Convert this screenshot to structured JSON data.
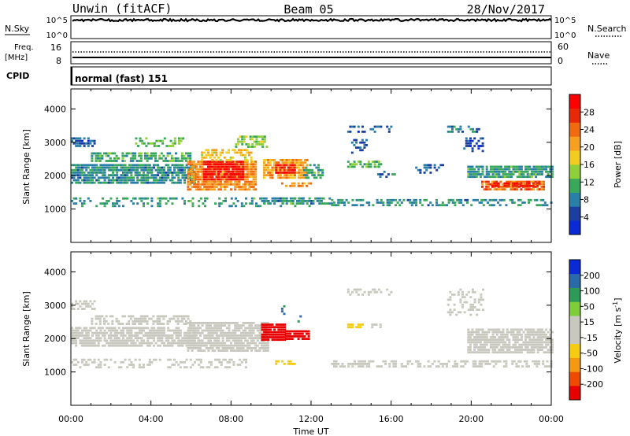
{
  "header": {
    "station": "Unwin (fitACF)",
    "beam": "Beam 05",
    "date": "28/Nov/2017"
  },
  "top_panels": {
    "nsky_label": "N.Sky",
    "nsky_ticks": [
      "10^5",
      "10^0"
    ],
    "nsearch_label": "N.Search",
    "nsearch_ticks": [
      "10^5",
      "10^0"
    ],
    "freq_label": "Freq.",
    "freq_unit": "[MHz]",
    "freq_ticks": [
      "16",
      "8"
    ],
    "nave_label": "Nave",
    "nave_ticks": [
      "60",
      "0"
    ],
    "cpid_label": "CPID",
    "cpid_value": "normal (fast) 151"
  },
  "colors": {
    "power": [
      "#0a2ad8",
      "#1a3fa0",
      "#2a7fa6",
      "#3aa85a",
      "#8fcf3a",
      "#f2cc20",
      "#f5a020",
      "#f06a10",
      "#e82808",
      "#ff0000"
    ],
    "velocity": [
      "#e80000",
      "#f04a00",
      "#f59a10",
      "#f6cc10",
      "#c8c8be",
      "#c8c8be",
      "#7ccf3a",
      "#2e9a58",
      "#2a6aa8",
      "#0a2ad8"
    ]
  },
  "chart_data": [
    {
      "type": "heatmap",
      "name": "power",
      "ylabel": "Slant Range [km]",
      "xlabel": "Time UT",
      "x_ticks": [
        "00:00",
        "04:00",
        "08:00",
        "12:00",
        "16:00",
        "20:00",
        "00:00"
      ],
      "xlim_hours": [
        0,
        24
      ],
      "y_ticks": [
        "1000",
        "2000",
        "3000",
        "4000"
      ],
      "ylim": [
        0,
        4600
      ],
      "colorbar_label": "Power [dB]",
      "colorbar_ticks": [
        "4",
        "8",
        "12",
        "16",
        "20",
        "24",
        "28"
      ],
      "colorbar_range": [
        0,
        32
      ],
      "regions": [
        {
          "t": [
            0.0,
            6.2
          ],
          "r": [
            1750,
            2350
          ],
          "value": 9,
          "density": 0.85
        },
        {
          "t": [
            0.0,
            1.2
          ],
          "r": [
            2850,
            3150
          ],
          "value": 6,
          "density": 0.7
        },
        {
          "t": [
            1.0,
            6.0
          ],
          "r": [
            2450,
            2700
          ],
          "value": 11,
          "density": 0.6
        },
        {
          "t": [
            3.0,
            5.6
          ],
          "r": [
            2900,
            3150
          ],
          "value": 13,
          "density": 0.45
        },
        {
          "t": [
            5.8,
            9.2
          ],
          "r": [
            1600,
            2450
          ],
          "value": 22,
          "density": 0.85
        },
        {
          "t": [
            6.6,
            8.6
          ],
          "r": [
            1900,
            2450
          ],
          "value": 29,
          "density": 0.8
        },
        {
          "t": [
            6.5,
            9.0
          ],
          "r": [
            2450,
            2800
          ],
          "value": 18,
          "density": 0.55
        },
        {
          "t": [
            8.2,
            9.8
          ],
          "r": [
            2850,
            3200
          ],
          "value": 14,
          "density": 0.4
        },
        {
          "t": [
            9.6,
            11.8
          ],
          "r": [
            1950,
            2500
          ],
          "value": 21,
          "density": 0.8
        },
        {
          "t": [
            10.2,
            11.2
          ],
          "r": [
            2050,
            2350
          ],
          "value": 28,
          "density": 0.8
        },
        {
          "t": [
            11.6,
            12.6
          ],
          "r": [
            1950,
            2350
          ],
          "value": 10,
          "density": 0.55
        },
        {
          "t": [
            9.5,
            13.0
          ],
          "r": [
            1150,
            1350
          ],
          "value": 9,
          "density": 0.55
        },
        {
          "t": [
            10.5,
            12.0
          ],
          "r": [
            1650,
            1800
          ],
          "value": 21,
          "density": 0.5
        },
        {
          "t": [
            13.8,
            15.5
          ],
          "r": [
            2250,
            2450
          ],
          "value": 12,
          "density": 0.6
        },
        {
          "t": [
            13.8,
            16.0
          ],
          "r": [
            3300,
            3500
          ],
          "value": 6,
          "density": 0.45
        },
        {
          "t": [
            14.0,
            14.8
          ],
          "r": [
            2700,
            3100
          ],
          "value": 6,
          "density": 0.4
        },
        {
          "t": [
            15.2,
            16.2
          ],
          "r": [
            1950,
            2150
          ],
          "value": 7,
          "density": 0.45
        },
        {
          "t": [
            17.2,
            18.6
          ],
          "r": [
            2050,
            2350
          ],
          "value": 6,
          "density": 0.35
        },
        {
          "t": [
            18.8,
            20.4
          ],
          "r": [
            3300,
            3500
          ],
          "value": 8,
          "density": 0.45
        },
        {
          "t": [
            19.6,
            20.6
          ],
          "r": [
            2700,
            3150
          ],
          "value": 5,
          "density": 0.5
        },
        {
          "t": [
            19.8,
            24.0
          ],
          "r": [
            1950,
            2300
          ],
          "value": 10,
          "density": 0.8
        },
        {
          "t": [
            20.5,
            23.6
          ],
          "r": [
            1550,
            1850
          ],
          "value": 24,
          "density": 0.85
        },
        {
          "t": [
            21.0,
            23.4
          ],
          "r": [
            1650,
            1800
          ],
          "value": 29,
          "density": 0.65
        },
        {
          "t": [
            13.0,
            24.0
          ],
          "r": [
            1100,
            1300
          ],
          "value": 9,
          "density": 0.45
        },
        {
          "t": [
            0.0,
            12.0
          ],
          "r": [
            1100,
            1350
          ],
          "value": 10,
          "density": 0.3
        }
      ]
    },
    {
      "type": "heatmap",
      "name": "velocity",
      "ylabel": "Slant Range [km]",
      "xlabel": "Time UT",
      "x_ticks": [
        "00:00",
        "04:00",
        "08:00",
        "12:00",
        "16:00",
        "20:00",
        "00:00"
      ],
      "xlim_hours": [
        0,
        24
      ],
      "y_ticks": [
        "1000",
        "2000",
        "3000",
        "4000"
      ],
      "ylim": [
        0,
        4600
      ],
      "colorbar_label": "Velocity [m s",
      "colorbar_label_exp": "-1",
      "colorbar_ticks": [
        "-200",
        "-100",
        "-50",
        "-15",
        "15",
        "50",
        "100",
        "200"
      ],
      "colorbar_range": [
        -250,
        250
      ],
      "regions": [
        {
          "t": [
            0.0,
            6.2
          ],
          "r": [
            1750,
            2350
          ],
          "value": 0,
          "density": 0.75
        },
        {
          "t": [
            1.0,
            6.0
          ],
          "r": [
            2450,
            2700
          ],
          "value": 0,
          "density": 0.55
        },
        {
          "t": [
            0.0,
            1.2
          ],
          "r": [
            2850,
            3150
          ],
          "value": 0,
          "density": 0.5
        },
        {
          "t": [
            5.8,
            9.8
          ],
          "r": [
            1600,
            2500
          ],
          "value": 0,
          "density": 0.8
        },
        {
          "t": [
            9.5,
            10.7
          ],
          "r": [
            1950,
            2450
          ],
          "value": -220,
          "density": 0.95
        },
        {
          "t": [
            10.7,
            11.9
          ],
          "r": [
            1950,
            2250
          ],
          "value": -220,
          "density": 0.85
        },
        {
          "t": [
            10.5,
            11.5
          ],
          "r": [
            2450,
            3000
          ],
          "value": 150,
          "density": 0.15
        },
        {
          "t": [
            10.2,
            11.2
          ],
          "r": [
            1200,
            1350
          ],
          "value": -70,
          "density": 0.6
        },
        {
          "t": [
            13.8,
            14.6
          ],
          "r": [
            2300,
            2450
          ],
          "value": -70,
          "density": 0.7
        },
        {
          "t": [
            15.0,
            15.6
          ],
          "r": [
            2300,
            2450
          ],
          "value": 30,
          "density": 0.7
        },
        {
          "t": [
            13.0,
            24.0
          ],
          "r": [
            1150,
            1350
          ],
          "value": 25,
          "density": 0.5
        },
        {
          "t": [
            19.8,
            24.0
          ],
          "r": [
            1550,
            2300
          ],
          "value": 0,
          "density": 0.8
        },
        {
          "t": [
            18.8,
            20.6
          ],
          "r": [
            2700,
            3500
          ],
          "value": 0,
          "density": 0.3
        },
        {
          "t": [
            13.8,
            16.0
          ],
          "r": [
            3300,
            3500
          ],
          "value": 0,
          "density": 0.3
        },
        {
          "t": [
            0.0,
            9.0
          ],
          "r": [
            1100,
            1400
          ],
          "value": 25,
          "density": 0.3
        }
      ]
    }
  ]
}
